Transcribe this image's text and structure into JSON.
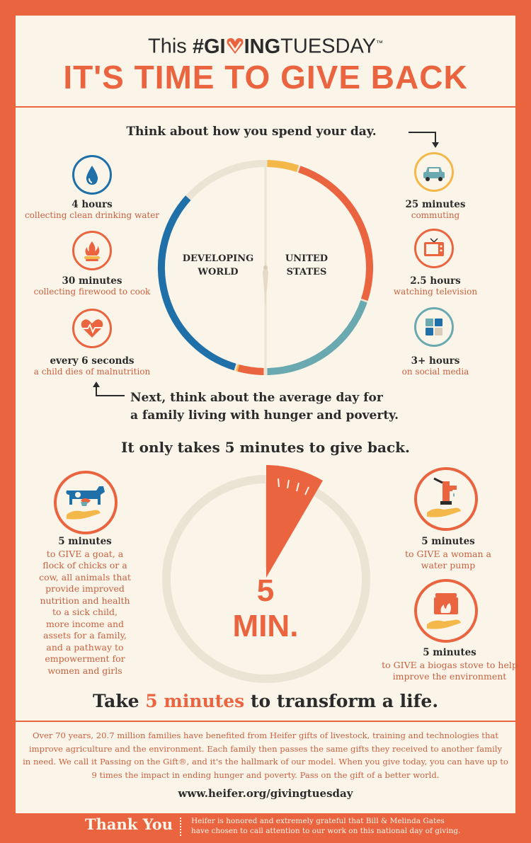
{
  "header": {
    "this": "This",
    "hashtag_pre": "#GI",
    "hashtag_post": "ING",
    "tuesday": "TUESDAY",
    "tm": "™",
    "headline": "IT'S TIME TO GIVE BACK"
  },
  "intro": {
    "think": "Think about how you spend your day.",
    "next_line1": "Next, think about the average day for",
    "next_line2": "a family living with hunger and poverty."
  },
  "clock": {
    "left_label_1": "DEVELOPING",
    "left_label_2": "WORLD",
    "right_label_1": "UNITED",
    "right_label_2": "STATES"
  },
  "developing": [
    {
      "icon": "water-drop-icon",
      "bold": "4 hours",
      "sub": "collecting clean drinking water"
    },
    {
      "icon": "campfire-icon",
      "bold": "30 minutes",
      "sub": "collecting firewood to cook"
    },
    {
      "icon": "heartbeat-icon",
      "bold": "every 6 seconds",
      "sub": "a child dies of malnutrition"
    }
  ],
  "us": [
    {
      "icon": "car-icon",
      "bold": "25 minutes",
      "sub": "commuting"
    },
    {
      "icon": "television-icon",
      "bold": "2.5 hours",
      "sub": "watching television"
    },
    {
      "icon": "social-media-icon",
      "bold": "3+ hours",
      "sub": "on social media"
    }
  ],
  "five": {
    "heading": "It only takes 5 minutes to give back.",
    "timer_num": "5",
    "timer_unit": "MIN.",
    "left": {
      "bold": "5 minutes",
      "lines": [
        "to GIVE a goat, a",
        "flock of chicks or a",
        "cow, all animals that",
        "provide improved",
        "nutrition and health",
        "to a sick child,",
        "more income and",
        "assets for a family,",
        "and a pathway to",
        "empowerment for",
        "women and girls"
      ]
    },
    "right_top": {
      "bold": "5 minutes",
      "lines": [
        "to GIVE a woman a",
        "water pump"
      ]
    },
    "right_bottom": {
      "bold": "5 minutes",
      "lines": [
        "to GIVE a biogas stove to help",
        "improve the environment"
      ]
    },
    "take_pre": "Take ",
    "take_highlight": "5 minutes",
    "take_post": " to transform a life."
  },
  "about": {
    "lines": [
      "Over 70 years, 20.7 million families have benefited from Heifer gifts of livestock, training and technologies that",
      "improve agriculture and the environment. Each family then passes the same gifts they received to another family",
      "in need. We call it Passing on the Gift®, and it's the hallmark of our model. When you give today, you can have up to",
      "9 times the impact in ending hunger and poverty. Pass on the gift of a better world."
    ],
    "url": "www.heifer.org/givingtuesday"
  },
  "footer": {
    "thank_you": "Thank You",
    "line1": "Heifer is honored and extremely grateful that Bill & Melinda Gates",
    "line2": "have chosen to call attention to our work on this national day of giving."
  },
  "colors": {
    "orange": "#ea6440",
    "blue": "#1f6fa8",
    "teal": "#6aa9b0",
    "yellow": "#f4b74a",
    "cream": "#fbf5e9",
    "ring": "#ebe3d3",
    "dark": "#2b2b2b"
  }
}
